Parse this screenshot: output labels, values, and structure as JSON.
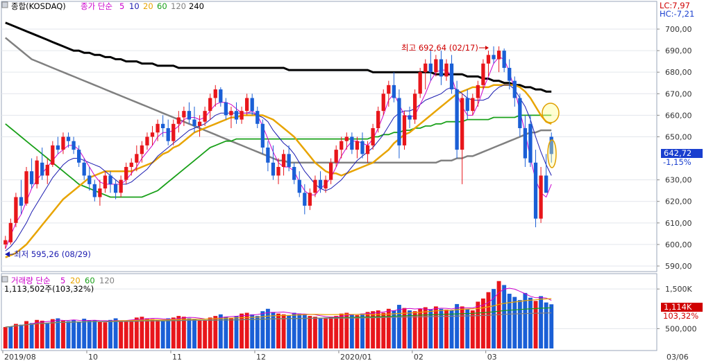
{
  "header": {
    "index_label": "종합(KOSDAQ)",
    "ma_prefix": "종가 단순",
    "ma_periods": [
      {
        "label": "5",
        "color": "#cc00cc"
      },
      {
        "label": "10",
        "color": "#1a1ab0"
      },
      {
        "label": "20",
        "color": "#e8a400"
      },
      {
        "label": "60",
        "color": "#19a019"
      },
      {
        "label": "120",
        "color": "#808080"
      },
      {
        "label": "240",
        "color": "#000000"
      }
    ],
    "lc": "LC:7,97",
    "hc": "HC:-7,21"
  },
  "volume_header": {
    "title": "거래량 단순",
    "periods": [
      {
        "label": "5",
        "color": "#cc00cc"
      },
      {
        "label": "20",
        "color": "#e8a400"
      },
      {
        "label": "60",
        "color": "#19a019"
      },
      {
        "label": "120",
        "color": "#808080"
      }
    ],
    "value_text": "1,113,502주(103,32%)"
  },
  "chart_data": {
    "type": "candlestick",
    "price_axis": {
      "ticks": [
        "700,00",
        "690,00",
        "680,00",
        "670,00",
        "660,00",
        "650,00",
        "630,00",
        "620,00",
        "610,00",
        "600,00",
        "590,00"
      ],
      "range": [
        586,
        708
      ]
    },
    "volume_axis": {
      "ticks": [
        "1,500K",
        "500,000"
      ],
      "range": [
        0,
        1800
      ]
    },
    "x_labels": [
      "2019/08",
      "10",
      "11",
      "12",
      "2020/01",
      "02",
      "03",
      "03/06"
    ],
    "current_price": {
      "label": "642,72",
      "value": 642.72,
      "change": "-1,15%"
    },
    "current_volume": {
      "label": "1,114K",
      "value": 1114,
      "pct": "103,32%"
    },
    "annotations": {
      "high": "최고 692,64 (02/17)",
      "low": "최저 595,26 (08/29)"
    },
    "candles": [
      [
        600,
        604,
        598,
        602
      ],
      [
        601,
        612,
        600,
        610
      ],
      [
        610,
        624,
        608,
        622
      ],
      [
        622,
        630,
        614,
        618
      ],
      [
        619,
        636,
        618,
        634
      ],
      [
        634,
        640,
        626,
        628
      ],
      [
        628,
        641,
        626,
        639
      ],
      [
        638,
        645,
        630,
        632
      ],
      [
        632,
        640,
        628,
        637
      ],
      [
        637,
        648,
        636,
        646
      ],
      [
        646,
        650,
        642,
        644
      ],
      [
        644,
        652,
        642,
        650
      ],
      [
        650,
        652,
        645,
        648
      ],
      [
        648,
        650,
        642,
        644
      ],
      [
        644,
        646,
        636,
        638
      ],
      [
        638,
        640,
        630,
        632
      ],
      [
        632,
        636,
        625,
        628
      ],
      [
        628,
        630,
        620,
        622
      ],
      [
        622,
        630,
        618,
        626
      ],
      [
        626,
        634,
        624,
        632
      ],
      [
        632,
        634,
        624,
        628
      ],
      [
        628,
        630,
        621,
        624
      ],
      [
        624,
        632,
        622,
        630
      ],
      [
        630,
        638,
        628,
        636
      ],
      [
        636,
        640,
        632,
        638
      ],
      [
        638,
        646,
        634,
        642
      ],
      [
        642,
        648,
        638,
        646
      ],
      [
        646,
        652,
        644,
        650
      ],
      [
        650,
        655,
        646,
        652
      ],
      [
        652,
        658,
        648,
        656
      ],
      [
        656,
        660,
        650,
        654
      ],
      [
        654,
        658,
        646,
        648
      ],
      [
        648,
        658,
        646,
        656
      ],
      [
        656,
        662,
        652,
        659
      ],
      [
        659,
        664,
        655,
        662
      ],
      [
        662,
        666,
        656,
        658
      ],
      [
        658,
        664,
        652,
        655
      ],
      [
        655,
        660,
        650,
        657
      ],
      [
        657,
        664,
        655,
        662
      ],
      [
        662,
        670,
        658,
        668
      ],
      [
        668,
        674,
        664,
        672
      ],
      [
        672,
        673,
        664,
        666
      ],
      [
        666,
        668,
        658,
        660
      ],
      [
        660,
        664,
        654,
        662
      ],
      [
        662,
        666,
        656,
        658
      ],
      [
        658,
        664,
        656,
        662
      ],
      [
        662,
        670,
        660,
        668
      ],
      [
        668,
        670,
        660,
        662
      ],
      [
        662,
        664,
        654,
        656
      ],
      [
        656,
        658,
        642,
        645
      ],
      [
        645,
        648,
        634,
        638
      ],
      [
        638,
        646,
        630,
        632
      ],
      [
        632,
        640,
        628,
        636
      ],
      [
        636,
        644,
        632,
        642
      ],
      [
        642,
        646,
        634,
        636
      ],
      [
        636,
        638,
        628,
        630
      ],
      [
        630,
        634,
        622,
        624
      ],
      [
        624,
        628,
        614,
        618
      ],
      [
        618,
        626,
        616,
        624
      ],
      [
        624,
        632,
        622,
        630
      ],
      [
        630,
        634,
        624,
        626
      ],
      [
        626,
        632,
        624,
        630
      ],
      [
        630,
        640,
        628,
        638
      ],
      [
        638,
        646,
        636,
        644
      ],
      [
        644,
        650,
        640,
        648
      ],
      [
        648,
        652,
        644,
        650
      ],
      [
        650,
        652,
        642,
        644
      ],
      [
        644,
        650,
        640,
        648
      ],
      [
        648,
        652,
        640,
        642
      ],
      [
        642,
        648,
        638,
        646
      ],
      [
        646,
        656,
        644,
        654
      ],
      [
        654,
        664,
        652,
        662
      ],
      [
        662,
        672,
        660,
        670
      ],
      [
        670,
        676,
        664,
        674
      ],
      [
        674,
        680,
        666,
        668
      ],
      [
        668,
        672,
        640,
        646
      ],
      [
        646,
        662,
        644,
        660
      ],
      [
        660,
        664,
        654,
        658
      ],
      [
        658,
        672,
        656,
        670
      ],
      [
        670,
        682,
        668,
        680
      ],
      [
        680,
        686,
        672,
        684
      ],
      [
        684,
        690,
        676,
        680
      ],
      [
        680,
        688,
        678,
        686
      ],
      [
        686,
        690,
        674,
        678
      ],
      [
        678,
        686,
        676,
        684
      ],
      [
        684,
        688,
        670,
        672
      ],
      [
        672,
        676,
        640,
        644
      ],
      [
        644,
        670,
        628,
        668
      ],
      [
        668,
        672,
        658,
        662
      ],
      [
        662,
        670,
        660,
        668
      ],
      [
        668,
        676,
        664,
        674
      ],
      [
        674,
        686,
        672,
        684
      ],
      [
        684,
        690,
        678,
        688
      ],
      [
        688,
        692,
        684,
        686
      ],
      [
        686,
        692,
        680,
        690
      ],
      [
        690,
        691,
        680,
        682
      ],
      [
        682,
        686,
        672,
        676
      ],
      [
        676,
        678,
        664,
        668
      ],
      [
        668,
        670,
        650,
        654
      ],
      [
        654,
        660,
        636,
        640
      ],
      [
        656,
        660,
        636,
        638
      ],
      [
        638,
        644,
        608,
        612
      ],
      [
        612,
        636,
        610,
        632
      ],
      [
        632,
        642,
        624,
        624
      ],
      [
        650,
        652,
        638,
        642
      ]
    ],
    "ma5": [
      598,
      604,
      610,
      614,
      620,
      626,
      630,
      633,
      636,
      639,
      642,
      644,
      646,
      646,
      644,
      640,
      636,
      632,
      629,
      628,
      628,
      628,
      628,
      630,
      633,
      636,
      640,
      643,
      646,
      650,
      652,
      652,
      653,
      655,
      658,
      659,
      659,
      658,
      659,
      662,
      665,
      666,
      666,
      665,
      663,
      661,
      661,
      662,
      660,
      655,
      649,
      643,
      638,
      636,
      636,
      634,
      629,
      625,
      623,
      623,
      626,
      628,
      631,
      636,
      641,
      645,
      648,
      648,
      647,
      646,
      649,
      654,
      660,
      667,
      670,
      665,
      660,
      659,
      660,
      665,
      670,
      676,
      680,
      681,
      681,
      678,
      670,
      664,
      660,
      660,
      665,
      672,
      678,
      684,
      687,
      686,
      680,
      672,
      662,
      652,
      640,
      630,
      624,
      622,
      628
    ],
    "ma10": [
      597,
      599,
      602,
      606,
      610,
      615,
      619,
      623,
      627,
      631,
      634,
      637,
      639,
      640,
      640,
      639,
      638,
      637,
      636,
      634,
      632,
      630,
      628,
      628,
      629,
      631,
      633,
      635,
      638,
      641,
      643,
      645,
      647,
      649,
      651,
      653,
      654,
      655,
      656,
      658,
      660,
      661,
      661,
      661,
      661,
      661,
      661,
      661,
      660,
      659,
      657,
      653,
      650,
      647,
      645,
      642,
      638,
      634,
      631,
      628,
      626,
      625,
      626,
      628,
      630,
      633,
      636,
      639,
      641,
      643,
      645,
      648,
      651,
      655,
      659,
      661,
      662,
      662,
      663,
      665,
      667,
      668,
      669,
      670,
      672,
      673,
      672,
      670,
      668,
      667,
      667,
      667,
      668,
      671,
      673,
      674,
      674,
      672,
      668,
      664,
      658,
      650,
      643,
      637,
      632
    ],
    "ma20": [
      594,
      595,
      596,
      598,
      600,
      603,
      606,
      609,
      612,
      615,
      618,
      621,
      623,
      625,
      627,
      629,
      631,
      632,
      633,
      634,
      634,
      634,
      634,
      634,
      634,
      635,
      636,
      637,
      638,
      640,
      642,
      643,
      645,
      646,
      648,
      650,
      652,
      653,
      654,
      655,
      656,
      657,
      658,
      659,
      659,
      660,
      660,
      660,
      660,
      660,
      659,
      658,
      656,
      654,
      652,
      650,
      647,
      644,
      641,
      638,
      636,
      634,
      633,
      633,
      632,
      633,
      634,
      635,
      636,
      637,
      638,
      640,
      642,
      644,
      647,
      649,
      651,
      652,
      654,
      656,
      658,
      660,
      662,
      664,
      666,
      668,
      670,
      671,
      672,
      673,
      673,
      673,
      673,
      674,
      674,
      674,
      674,
      674,
      673,
      671,
      668,
      664,
      660,
      657,
      656
    ],
    "ma60": [
      656,
      654,
      652,
      650,
      648,
      646,
      644,
      642,
      640,
      638,
      636,
      634,
      632,
      630,
      628,
      627,
      626,
      625,
      624,
      623,
      622,
      622,
      622,
      622,
      622,
      622,
      622,
      623,
      624,
      625,
      627,
      629,
      631,
      633,
      635,
      637,
      639,
      641,
      643,
      645,
      646,
      647,
      648,
      648,
      649,
      649,
      649,
      649,
      649,
      649,
      649,
      649,
      649,
      649,
      649,
      649,
      649,
      649,
      649,
      649,
      649,
      649,
      649,
      649,
      649,
      649,
      649,
      649,
      649,
      649,
      650,
      650,
      651,
      651,
      652,
      652,
      653,
      653,
      654,
      654,
      655,
      655,
      656,
      656,
      657,
      657,
      657,
      657,
      658,
      658,
      658,
      658,
      658,
      659,
      659,
      659,
      659,
      659,
      660,
      660,
      660,
      660,
      660,
      660,
      660
    ],
    "ma120": [
      696,
      694,
      692,
      690,
      688,
      686,
      685,
      684,
      683,
      682,
      681,
      680,
      679,
      678,
      677,
      676,
      675,
      674,
      673,
      672,
      671,
      670,
      669,
      668,
      667,
      666,
      665,
      664,
      663,
      662,
      661,
      660,
      659,
      658,
      657,
      656,
      655,
      654,
      653,
      652,
      651,
      650,
      649,
      648,
      647,
      646,
      645,
      644,
      643,
      642,
      641,
      640,
      639,
      639,
      638,
      638,
      638,
      638,
      638,
      638,
      638,
      638,
      638,
      638,
      638,
      638,
      638,
      638,
      638,
      638,
      638,
      638,
      638,
      638,
      638,
      638,
      638,
      638,
      638,
      638,
      638,
      638,
      638,
      639,
      639,
      639,
      640,
      640,
      641,
      641,
      642,
      643,
      644,
      645,
      646,
      647,
      648,
      649,
      650,
      651,
      652,
      652,
      653,
      653,
      653
    ],
    "ma240": [
      703,
      702,
      701,
      700,
      699,
      698,
      697,
      696,
      695,
      694,
      693,
      692,
      691,
      690,
      690,
      689,
      689,
      688,
      688,
      687,
      687,
      686,
      686,
      685,
      685,
      685,
      684,
      684,
      684,
      683,
      683,
      683,
      683,
      682,
      682,
      682,
      682,
      682,
      682,
      682,
      682,
      682,
      682,
      682,
      682,
      682,
      682,
      682,
      682,
      682,
      682,
      682,
      682,
      682,
      681,
      681,
      681,
      681,
      681,
      681,
      681,
      681,
      681,
      681,
      681,
      681,
      681,
      681,
      681,
      681,
      680,
      680,
      680,
      680,
      680,
      680,
      680,
      680,
      680,
      680,
      680,
      680,
      679,
      679,
      679,
      679,
      679,
      679,
      678,
      678,
      678,
      677,
      677,
      676,
      676,
      675,
      675,
      674,
      674,
      673,
      673,
      672,
      672,
      671,
      671
    ],
    "volume": [
      540,
      560,
      620,
      600,
      690,
      640,
      720,
      700,
      650,
      740,
      760,
      700,
      690,
      720,
      680,
      750,
      700,
      710,
      680,
      660,
      720,
      760,
      700,
      690,
      720,
      780,
      800,
      760,
      740,
      720,
      700,
      760,
      780,
      820,
      800,
      760,
      740,
      700,
      720,
      780,
      820,
      860,
      800,
      760,
      820,
      880,
      900,
      860,
      820,
      940,
      1000,
      920,
      880,
      860,
      840,
      900,
      880,
      860,
      820,
      800,
      760,
      780,
      800,
      820,
      880,
      900,
      860,
      840,
      880,
      920,
      940,
      960,
      900,
      1000,
      960,
      1100,
      1020,
      960,
      940,
      1000,
      1040,
      980,
      1060,
      1000,
      980,
      960,
      1120,
      1060,
      1000,
      960,
      1180,
      1260,
      1420,
      1500,
      1700,
      1600,
      1380,
      1300,
      1220,
      1400,
      1280,
      1200,
      1320,
      1160,
      1114
    ],
    "volume_up": [
      true,
      false,
      true,
      false,
      true,
      false,
      true,
      true,
      false,
      true,
      false,
      true,
      false,
      false,
      false,
      false,
      false,
      false,
      true,
      true,
      false,
      false,
      true,
      true,
      true,
      true,
      true,
      true,
      true,
      true,
      false,
      false,
      true,
      true,
      true,
      false,
      false,
      true,
      true,
      true,
      true,
      false,
      false,
      true,
      false,
      true,
      true,
      false,
      false,
      false,
      false,
      false,
      true,
      true,
      false,
      false,
      false,
      false,
      true,
      true,
      false,
      true,
      true,
      true,
      true,
      true,
      false,
      true,
      false,
      true,
      true,
      true,
      true,
      true,
      false,
      false,
      true,
      false,
      true,
      true,
      true,
      false,
      true,
      false,
      true,
      false,
      false,
      true,
      false,
      true,
      true,
      true,
      true,
      false,
      true,
      false,
      false,
      false,
      false,
      false,
      false,
      true,
      false,
      false,
      false
    ]
  }
}
